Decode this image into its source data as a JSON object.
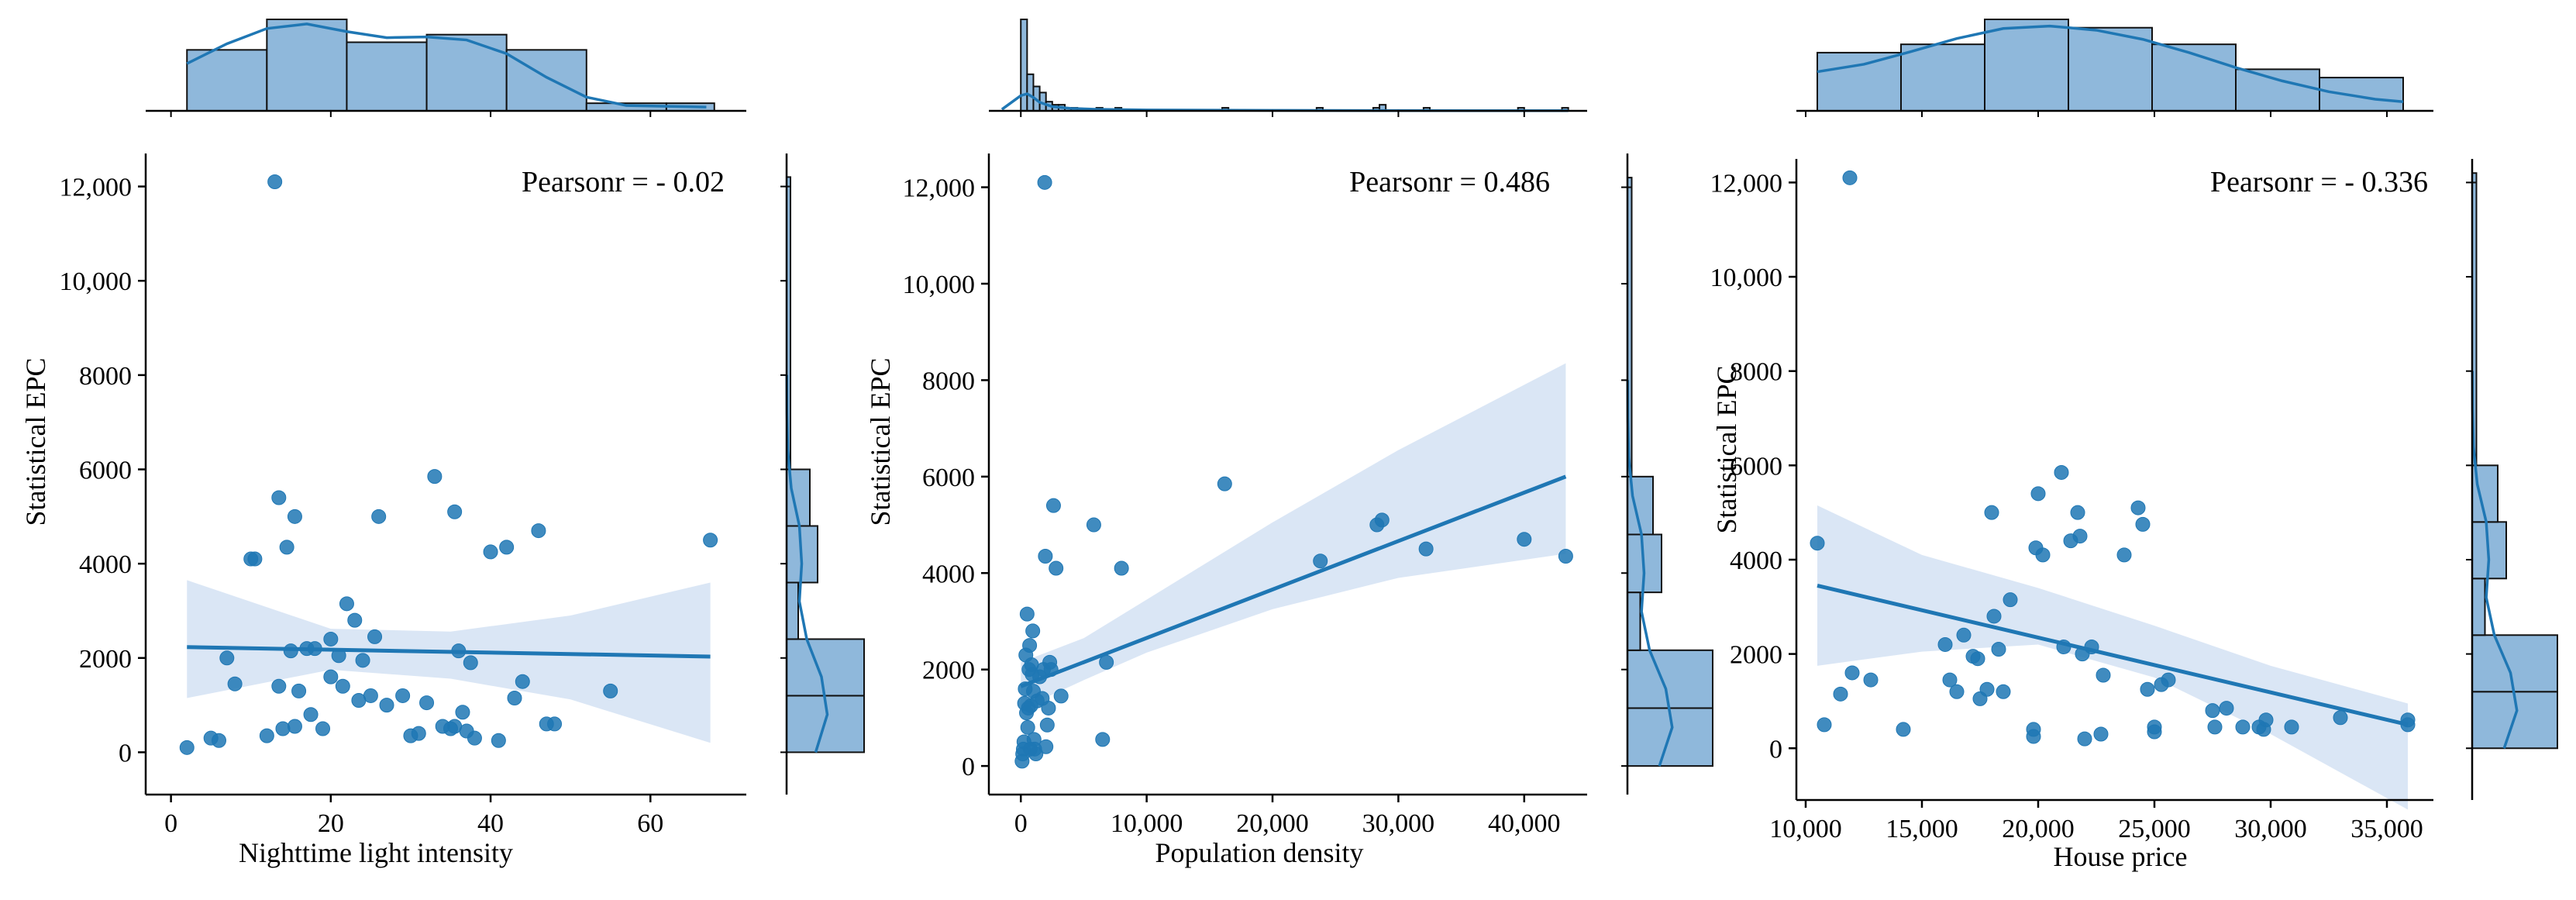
{
  "style": {
    "point_color": "#1f77b4",
    "line_color": "#1f77b4",
    "band_color": "#aec7e8",
    "hist_fill": "#8fb8db",
    "hist_edge": "#111111",
    "axis_color": "#000000"
  },
  "chart_data": [
    {
      "type": "scatter",
      "title": "",
      "xlabel": "Nighttime light intensity",
      "ylabel": "Statistical EPC",
      "annotation": "Pearsonr = - 0.02",
      "xlim": [
        -2,
        72
      ],
      "ylim": [
        -700,
        12700
      ],
      "xticks": [
        0,
        20,
        40,
        60
      ],
      "xtick_labels": [
        "0",
        "20",
        "40",
        "60"
      ],
      "yticks": [
        0,
        2000,
        4000,
        6000,
        8000,
        10000,
        12000
      ],
      "ytick_labels": [
        "0",
        "2000",
        "4000",
        "6000",
        "8000",
        "10,000",
        "12,000"
      ],
      "points": [
        [
          2,
          100
        ],
        [
          5,
          300
        ],
        [
          6,
          250
        ],
        [
          7,
          2000
        ],
        [
          8,
          1450
        ],
        [
          10,
          4100
        ],
        [
          10.5,
          4100
        ],
        [
          12,
          350
        ],
        [
          13,
          12100
        ],
        [
          13.5,
          5400
        ],
        [
          13.5,
          1400
        ],
        [
          14,
          500
        ],
        [
          14.5,
          4350
        ],
        [
          15,
          2150
        ],
        [
          15.5,
          5000
        ],
        [
          15.5,
          550
        ],
        [
          16,
          1300
        ],
        [
          17,
          2200
        ],
        [
          17.5,
          800
        ],
        [
          18,
          2200
        ],
        [
          19,
          500
        ],
        [
          20,
          2400
        ],
        [
          20,
          1600
        ],
        [
          21,
          2050
        ],
        [
          21.5,
          1400
        ],
        [
          22,
          3150
        ],
        [
          23,
          2800
        ],
        [
          23.5,
          1100
        ],
        [
          24,
          1950
        ],
        [
          25,
          1200
        ],
        [
          25.5,
          2450
        ],
        [
          26,
          5000
        ],
        [
          27,
          1000
        ],
        [
          29,
          1200
        ],
        [
          30,
          350
        ],
        [
          31,
          400
        ],
        [
          32,
          1050
        ],
        [
          33,
          5850
        ],
        [
          34,
          550
        ],
        [
          35,
          500
        ],
        [
          35.5,
          550
        ],
        [
          35.5,
          5100
        ],
        [
          36,
          2150
        ],
        [
          36.5,
          850
        ],
        [
          37,
          450
        ],
        [
          37.5,
          1900
        ],
        [
          38,
          300
        ],
        [
          40,
          4250
        ],
        [
          41,
          250
        ],
        [
          42,
          4350
        ],
        [
          43,
          1150
        ],
        [
          44,
          1500
        ],
        [
          46,
          4700
        ],
        [
          47,
          600
        ],
        [
          48,
          600
        ],
        [
          55,
          1300
        ],
        [
          67.5,
          4500
        ]
      ],
      "regression": {
        "x": [
          2,
          67.5
        ],
        "y": [
          2230,
          2030
        ]
      },
      "ci_upper": [
        [
          2,
          3650
        ],
        [
          20,
          2620
        ],
        [
          35,
          2560
        ],
        [
          50,
          2900
        ],
        [
          67.5,
          3600
        ]
      ],
      "ci_lower": [
        [
          2,
          1150
        ],
        [
          20,
          1750
        ],
        [
          35,
          1560
        ],
        [
          50,
          1120
        ],
        [
          67.5,
          200
        ]
      ],
      "top_hist": {
        "bins": [
          2,
          12,
          22,
          32,
          42,
          52,
          62,
          68
        ],
        "counts": [
          8,
          12,
          9,
          10,
          8,
          1,
          1
        ],
        "kde_x": [
          2,
          7,
          12,
          17,
          22,
          27,
          32,
          37,
          42,
          47,
          52,
          57,
          62,
          67
        ],
        "kde_y": [
          6.2,
          8.8,
          10.8,
          11.4,
          10.4,
          9.6,
          9.7,
          9.3,
          7.5,
          4.4,
          1.8,
          0.7,
          0.6,
          0.5
        ]
      },
      "right_hist": {
        "bins": [
          0,
          1200,
          2400,
          3600,
          4800,
          6000,
          12000,
          12200
        ],
        "counts": [
          20,
          20,
          3,
          8,
          6,
          1,
          1
        ],
        "kde_y": [
          0,
          800,
          1600,
          2400,
          3200,
          4000,
          4800,
          5600,
          6400,
          7200,
          8000
        ],
        "kde_x": [
          7.5,
          10.5,
          9,
          5.2,
          3.3,
          3.9,
          3.3,
          1.2,
          0.3,
          0.1,
          0.05
        ]
      }
    },
    {
      "type": "scatter",
      "title": "",
      "xlabel": "Population density",
      "ylabel": "Statistical EPC",
      "annotation": "Pearsonr = 0.486",
      "xlim": [
        -1800,
        45000
      ],
      "ylim": [
        -400,
        12700
      ],
      "xticks": [
        0,
        10000,
        20000,
        30000,
        40000
      ],
      "xtick_labels": [
        "0",
        "10,000",
        "20,000",
        "30,000",
        "40,000"
      ],
      "yticks": [
        0,
        2000,
        4000,
        6000,
        8000,
        10000,
        12000
      ],
      "ytick_labels": [
        "0",
        "2000",
        "4000",
        "6000",
        "8000",
        "10,000",
        "12,000"
      ],
      "points": [
        [
          100,
          100
        ],
        [
          150,
          250
        ],
        [
          200,
          350
        ],
        [
          250,
          500
        ],
        [
          300,
          1300
        ],
        [
          350,
          1600
        ],
        [
          400,
          2300
        ],
        [
          450,
          1100
        ],
        [
          500,
          3150
        ],
        [
          550,
          800
        ],
        [
          600,
          1200
        ],
        [
          650,
          2000
        ],
        [
          700,
          2500
        ],
        [
          750,
          350
        ],
        [
          800,
          1250
        ],
        [
          850,
          2100
        ],
        [
          900,
          1900
        ],
        [
          950,
          2800
        ],
        [
          1000,
          1550
        ],
        [
          1050,
          550
        ],
        [
          1100,
          350
        ],
        [
          1200,
          250
        ],
        [
          1300,
          1350
        ],
        [
          1500,
          1850
        ],
        [
          1700,
          1400
        ],
        [
          1800,
          2000
        ],
        [
          1900,
          12100
        ],
        [
          1950,
          4350
        ],
        [
          2000,
          400
        ],
        [
          2100,
          850
        ],
        [
          2200,
          1200
        ],
        [
          2300,
          2150
        ],
        [
          2400,
          2000
        ],
        [
          2600,
          5400
        ],
        [
          2800,
          4100
        ],
        [
          3200,
          1450
        ],
        [
          5800,
          5000
        ],
        [
          6500,
          550
        ],
        [
          6800,
          2150
        ],
        [
          8000,
          4100
        ],
        [
          16200,
          5850
        ],
        [
          23800,
          4250
        ],
        [
          28300,
          5000
        ],
        [
          28700,
          5100
        ],
        [
          32200,
          4500
        ],
        [
          40000,
          4700
        ],
        [
          43300,
          4350
        ]
      ],
      "regression": {
        "x": [
          0,
          43300
        ],
        "y": [
          1650,
          6000
        ]
      },
      "ci_upper": [
        [
          0,
          2150
        ],
        [
          5000,
          2650
        ],
        [
          10000,
          3450
        ],
        [
          20000,
          5050
        ],
        [
          30000,
          6550
        ],
        [
          43300,
          8350
        ]
      ],
      "ci_lower": [
        [
          0,
          1180
        ],
        [
          5000,
          1780
        ],
        [
          10000,
          2350
        ],
        [
          20000,
          3250
        ],
        [
          30000,
          3900
        ],
        [
          43300,
          4400
        ]
      ],
      "top_hist": {
        "bins": [
          0,
          500,
          1000,
          1500,
          2000,
          2500,
          3000,
          3500,
          4000,
          4500
        ],
        "counts": [
          30,
          12,
          8,
          6,
          3,
          2,
          2,
          1,
          1
        ],
        "extra_bars": [
          [
            6000,
            6500,
            1
          ],
          [
            7500,
            8000,
            1
          ],
          [
            16000,
            16500,
            1
          ],
          [
            23500,
            24000,
            1
          ],
          [
            28000,
            28500,
            1
          ],
          [
            28500,
            29000,
            2
          ],
          [
            32000,
            32500,
            1
          ],
          [
            39500,
            40000,
            1
          ],
          [
            43000,
            43500,
            1
          ]
        ],
        "kde_x": [
          -1500,
          0,
          500,
          1000,
          1500,
          2500,
          4000,
          6000,
          10000,
          20000,
          30000,
          43500
        ],
        "kde_y": [
          0.5,
          5,
          5.6,
          4.4,
          2.8,
          1.4,
          0.8,
          0.5,
          0.3,
          0.15,
          0.1,
          0.05
        ]
      },
      "right_hist": {
        "bins": [
          0,
          1200,
          2400,
          3600,
          4800,
          6000,
          12000,
          12200
        ],
        "counts": [
          20,
          20,
          3,
          8,
          6,
          1,
          1
        ],
        "kde_y": [
          0,
          800,
          1600,
          2400,
          3200,
          4000,
          4800,
          5600,
          6400,
          7200,
          8000
        ],
        "kde_x": [
          7.5,
          10.5,
          9,
          5.2,
          3.3,
          3.9,
          3.3,
          1.2,
          0.3,
          0.1,
          0.05
        ]
      }
    },
    {
      "type": "scatter",
      "title": "",
      "xlabel": "House price",
      "ylabel": "Statistical EPC",
      "annotation": "Pearsonr = - 0.336",
      "xlim": [
        10000,
        37000
      ],
      "ylim": [
        -900,
        12500
      ],
      "xticks": [
        10000,
        15000,
        20000,
        25000,
        30000,
        35000
      ],
      "xtick_labels": [
        "10,000",
        "15,000",
        "20,000",
        "25,000",
        "30,000",
        "35,000"
      ],
      "yticks": [
        0,
        2000,
        4000,
        6000,
        8000,
        10000,
        12000
      ],
      "ytick_labels": [
        "0",
        "2000",
        "4000",
        "6000",
        "8000",
        "10,000",
        "12,000"
      ],
      "points": [
        [
          10500,
          4350
        ],
        [
          10800,
          500
        ],
        [
          11500,
          1150
        ],
        [
          11900,
          12100
        ],
        [
          12000,
          1600
        ],
        [
          12800,
          1450
        ],
        [
          14200,
          400
        ],
        [
          16000,
          2200
        ],
        [
          16200,
          1450
        ],
        [
          16500,
          1200
        ],
        [
          16800,
          2400
        ],
        [
          17200,
          1950
        ],
        [
          17400,
          1900
        ],
        [
          17500,
          1050
        ],
        [
          17800,
          1250
        ],
        [
          18000,
          5000
        ],
        [
          18100,
          2800
        ],
        [
          18300,
          2100
        ],
        [
          18500,
          1200
        ],
        [
          18800,
          3150
        ],
        [
          19800,
          250
        ],
        [
          19800,
          400
        ],
        [
          19900,
          4250
        ],
        [
          20000,
          5400
        ],
        [
          20200,
          4100
        ],
        [
          21000,
          5850
        ],
        [
          21100,
          2150
        ],
        [
          21400,
          4400
        ],
        [
          21700,
          5000
        ],
        [
          21800,
          4500
        ],
        [
          21900,
          2000
        ],
        [
          22000,
          200
        ],
        [
          22300,
          2150
        ],
        [
          22700,
          300
        ],
        [
          22800,
          1550
        ],
        [
          23700,
          4100
        ],
        [
          24300,
          5100
        ],
        [
          24500,
          4750
        ],
        [
          24700,
          1250
        ],
        [
          25000,
          350
        ],
        [
          25000,
          450
        ],
        [
          25300,
          1350
        ],
        [
          25600,
          1450
        ],
        [
          27500,
          800
        ],
        [
          27600,
          450
        ],
        [
          28100,
          850
        ],
        [
          28800,
          450
        ],
        [
          29500,
          450
        ],
        [
          29700,
          400
        ],
        [
          29800,
          600
        ],
        [
          30900,
          450
        ],
        [
          33000,
          650
        ],
        [
          35900,
          500
        ],
        [
          35900,
          600
        ]
      ],
      "regression": {
        "x": [
          10500,
          35900
        ],
        "y": [
          3450,
          500
        ]
      },
      "ci_upper": [
        [
          10500,
          5150
        ],
        [
          15000,
          4100
        ],
        [
          20000,
          3400
        ],
        [
          25000,
          2600
        ],
        [
          30000,
          1750
        ],
        [
          35900,
          950
        ]
      ],
      "ci_lower": [
        [
          10500,
          1750
        ],
        [
          15000,
          2050
        ],
        [
          20000,
          2200
        ],
        [
          25000,
          1500
        ],
        [
          30000,
          300
        ],
        [
          35900,
          -1300
        ]
      ],
      "top_hist": {
        "bins": [
          10500,
          14100,
          17700,
          21300,
          24900,
          28500,
          32100,
          35700
        ],
        "counts": [
          7,
          8,
          11,
          10,
          8,
          5,
          4
        ],
        "kde_x": [
          10500,
          12500,
          14500,
          16500,
          18500,
          20500,
          22500,
          24500,
          26500,
          28500,
          30500,
          32500,
          34500,
          35700
        ],
        "kde_y": [
          4.7,
          5.6,
          7.1,
          8.7,
          9.9,
          10.2,
          9.7,
          8.6,
          7.0,
          5.2,
          3.6,
          2.3,
          1.4,
          1.1
        ]
      },
      "right_hist": {
        "bins": [
          0,
          1200,
          2400,
          3600,
          4800,
          6000,
          12000,
          12200
        ],
        "counts": [
          20,
          20,
          3,
          8,
          6,
          1,
          1
        ],
        "kde_y": [
          0,
          800,
          1600,
          2400,
          3200,
          4000,
          4800,
          5600,
          6400,
          7200,
          8000
        ],
        "kde_x": [
          7.5,
          10.5,
          9,
          5.2,
          3.3,
          3.9,
          3.3,
          1.2,
          0.3,
          0.1,
          0.05
        ]
      }
    }
  ]
}
